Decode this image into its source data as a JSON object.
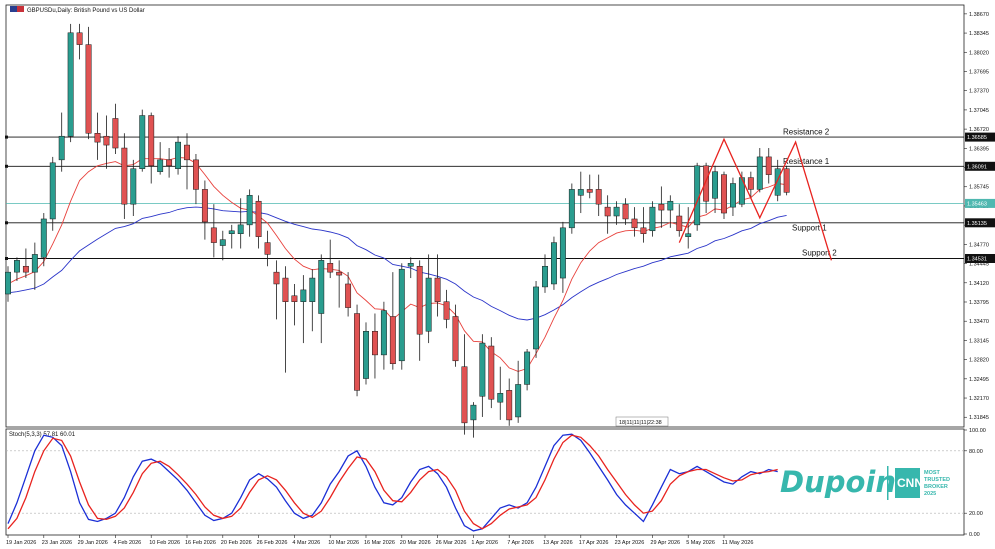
{
  "chart_data": {
    "type": "candlestick",
    "symbol_title": "GBPUSDu,Daily:  British Pound vs US Dollar",
    "colors": {
      "bull": "#2a9d8f",
      "bear": "#e05252",
      "ma_fast": "#e8413c",
      "ma_slow": "#2b35c9",
      "stoch_main": "#1b2fd6",
      "stoch_signal": "#e8231f",
      "level": "#111111",
      "bid": "#4fb8b0",
      "pattern": "#e8231f"
    },
    "candles": [
      {
        "o": 1.3393,
        "h": 1.344,
        "l": 1.338,
        "c": 1.343
      },
      {
        "o": 1.343,
        "h": 1.3455,
        "l": 1.3415,
        "c": 1.345
      },
      {
        "o": 1.344,
        "h": 1.347,
        "l": 1.342,
        "c": 1.343
      },
      {
        "o": 1.343,
        "h": 1.348,
        "l": 1.34,
        "c": 1.346
      },
      {
        "o": 1.3455,
        "h": 1.353,
        "l": 1.344,
        "c": 1.352
      },
      {
        "o": 1.352,
        "h": 1.3625,
        "l": 1.35,
        "c": 1.3615
      },
      {
        "o": 1.362,
        "h": 1.37,
        "l": 1.36,
        "c": 1.366
      },
      {
        "o": 1.366,
        "h": 1.385,
        "l": 1.365,
        "c": 1.3835
      },
      {
        "o": 1.3835,
        "h": 1.385,
        "l": 1.379,
        "c": 1.3815
      },
      {
        "o": 1.3815,
        "h": 1.3845,
        "l": 1.3655,
        "c": 1.3665
      },
      {
        "o": 1.3665,
        "h": 1.37,
        "l": 1.362,
        "c": 1.365
      },
      {
        "o": 1.366,
        "h": 1.3695,
        "l": 1.3605,
        "c": 1.3645
      },
      {
        "o": 1.369,
        "h": 1.3715,
        "l": 1.363,
        "c": 1.364
      },
      {
        "o": 1.364,
        "h": 1.3665,
        "l": 1.352,
        "c": 1.3545
      },
      {
        "o": 1.3545,
        "h": 1.362,
        "l": 1.3525,
        "c": 1.3605
      },
      {
        "o": 1.3605,
        "h": 1.3705,
        "l": 1.36,
        "c": 1.3695
      },
      {
        "o": 1.3695,
        "h": 1.37,
        "l": 1.358,
        "c": 1.361
      },
      {
        "o": 1.36,
        "h": 1.365,
        "l": 1.3595,
        "c": 1.362
      },
      {
        "o": 1.362,
        "h": 1.364,
        "l": 1.359,
        "c": 1.361
      },
      {
        "o": 1.3605,
        "h": 1.366,
        "l": 1.3595,
        "c": 1.365
      },
      {
        "o": 1.3645,
        "h": 1.3665,
        "l": 1.357,
        "c": 1.362
      },
      {
        "o": 1.362,
        "h": 1.363,
        "l": 1.3545,
        "c": 1.357
      },
      {
        "o": 1.357,
        "h": 1.3585,
        "l": 1.3485,
        "c": 1.3515
      },
      {
        "o": 1.3505,
        "h": 1.3545,
        "l": 1.3455,
        "c": 1.348
      },
      {
        "o": 1.3475,
        "h": 1.35,
        "l": 1.345,
        "c": 1.3485
      },
      {
        "o": 1.3495,
        "h": 1.351,
        "l": 1.347,
        "c": 1.35
      },
      {
        "o": 1.3495,
        "h": 1.3555,
        "l": 1.347,
        "c": 1.351
      },
      {
        "o": 1.351,
        "h": 1.357,
        "l": 1.349,
        "c": 1.356
      },
      {
        "o": 1.355,
        "h": 1.356,
        "l": 1.347,
        "c": 1.349
      },
      {
        "o": 1.348,
        "h": 1.35,
        "l": 1.344,
        "c": 1.346
      },
      {
        "o": 1.343,
        "h": 1.345,
        "l": 1.335,
        "c": 1.341
      },
      {
        "o": 1.342,
        "h": 1.344,
        "l": 1.326,
        "c": 1.338
      },
      {
        "o": 1.339,
        "h": 1.341,
        "l": 1.334,
        "c": 1.338
      },
      {
        "o": 1.338,
        "h": 1.3425,
        "l": 1.331,
        "c": 1.34
      },
      {
        "o": 1.338,
        "h": 1.3435,
        "l": 1.333,
        "c": 1.342
      },
      {
        "o": 1.336,
        "h": 1.346,
        "l": 1.331,
        "c": 1.345
      },
      {
        "o": 1.3445,
        "h": 1.3485,
        "l": 1.342,
        "c": 1.343
      },
      {
        "o": 1.343,
        "h": 1.345,
        "l": 1.337,
        "c": 1.3425
      },
      {
        "o": 1.341,
        "h": 1.343,
        "l": 1.3355,
        "c": 1.337
      },
      {
        "o": 1.336,
        "h": 1.3375,
        "l": 1.322,
        "c": 1.323
      },
      {
        "o": 1.325,
        "h": 1.3345,
        "l": 1.324,
        "c": 1.333
      },
      {
        "o": 1.333,
        "h": 1.336,
        "l": 1.325,
        "c": 1.329
      },
      {
        "o": 1.329,
        "h": 1.338,
        "l": 1.3265,
        "c": 1.3365
      },
      {
        "o": 1.3355,
        "h": 1.343,
        "l": 1.3265,
        "c": 1.3275
      },
      {
        "o": 1.328,
        "h": 1.3445,
        "l": 1.3265,
        "c": 1.3435
      },
      {
        "o": 1.344,
        "h": 1.3455,
        "l": 1.342,
        "c": 1.3445
      },
      {
        "o": 1.344,
        "h": 1.345,
        "l": 1.328,
        "c": 1.3325
      },
      {
        "o": 1.333,
        "h": 1.346,
        "l": 1.331,
        "c": 1.342
      },
      {
        "o": 1.342,
        "h": 1.346,
        "l": 1.3355,
        "c": 1.338
      },
      {
        "o": 1.338,
        "h": 1.34,
        "l": 1.3335,
        "c": 1.335
      },
      {
        "o": 1.3355,
        "h": 1.3375,
        "l": 1.327,
        "c": 1.328
      },
      {
        "o": 1.327,
        "h": 1.3325,
        "l": 1.3155,
        "c": 1.3175
      },
      {
        "o": 1.318,
        "h": 1.321,
        "l": 1.315,
        "c": 1.3205
      },
      {
        "o": 1.322,
        "h": 1.3325,
        "l": 1.3185,
        "c": 1.331
      },
      {
        "o": 1.3305,
        "h": 1.332,
        "l": 1.32,
        "c": 1.3215
      },
      {
        "o": 1.321,
        "h": 1.327,
        "l": 1.318,
        "c": 1.3225
      },
      {
        "o": 1.323,
        "h": 1.325,
        "l": 1.317,
        "c": 1.318
      },
      {
        "o": 1.3185,
        "h": 1.328,
        "l": 1.3175,
        "c": 1.324
      },
      {
        "o": 1.324,
        "h": 1.33,
        "l": 1.323,
        "c": 1.3295
      },
      {
        "o": 1.33,
        "h": 1.3415,
        "l": 1.3285,
        "c": 1.3405
      },
      {
        "o": 1.3405,
        "h": 1.346,
        "l": 1.3395,
        "c": 1.344
      },
      {
        "o": 1.341,
        "h": 1.349,
        "l": 1.34,
        "c": 1.348
      },
      {
        "o": 1.342,
        "h": 1.3515,
        "l": 1.3395,
        "c": 1.3505
      },
      {
        "o": 1.3505,
        "h": 1.358,
        "l": 1.3495,
        "c": 1.357
      },
      {
        "o": 1.356,
        "h": 1.36,
        "l": 1.353,
        "c": 1.357
      },
      {
        "o": 1.357,
        "h": 1.3595,
        "l": 1.3555,
        "c": 1.3565
      },
      {
        "o": 1.357,
        "h": 1.3595,
        "l": 1.3525,
        "c": 1.3545
      },
      {
        "o": 1.354,
        "h": 1.356,
        "l": 1.3495,
        "c": 1.3525
      },
      {
        "o": 1.3525,
        "h": 1.355,
        "l": 1.351,
        "c": 1.354
      },
      {
        "o": 1.3545,
        "h": 1.3555,
        "l": 1.351,
        "c": 1.352
      },
      {
        "o": 1.352,
        "h": 1.354,
        "l": 1.349,
        "c": 1.3505
      },
      {
        "o": 1.3505,
        "h": 1.354,
        "l": 1.348,
        "c": 1.3495
      },
      {
        "o": 1.35,
        "h": 1.355,
        "l": 1.349,
        "c": 1.354
      },
      {
        "o": 1.3545,
        "h": 1.3575,
        "l": 1.3505,
        "c": 1.3535
      },
      {
        "o": 1.3535,
        "h": 1.356,
        "l": 1.3505,
        "c": 1.355
      },
      {
        "o": 1.3525,
        "h": 1.3545,
        "l": 1.349,
        "c": 1.35
      },
      {
        "o": 1.349,
        "h": 1.354,
        "l": 1.347,
        "c": 1.3495
      },
      {
        "o": 1.351,
        "h": 1.3615,
        "l": 1.35,
        "c": 1.361
      },
      {
        "o": 1.361,
        "h": 1.3615,
        "l": 1.353,
        "c": 1.355
      },
      {
        "o": 1.3555,
        "h": 1.361,
        "l": 1.353,
        "c": 1.36
      },
      {
        "o": 1.3595,
        "h": 1.36,
        "l": 1.352,
        "c": 1.353
      },
      {
        "o": 1.354,
        "h": 1.359,
        "l": 1.3525,
        "c": 1.358
      },
      {
        "o": 1.3545,
        "h": 1.36,
        "l": 1.354,
        "c": 1.359
      },
      {
        "o": 1.359,
        "h": 1.36,
        "l": 1.3555,
        "c": 1.357
      },
      {
        "o": 1.357,
        "h": 1.364,
        "l": 1.3565,
        "c": 1.3625
      },
      {
        "o": 1.3625,
        "h": 1.364,
        "l": 1.358,
        "c": 1.3595
      },
      {
        "o": 1.356,
        "h": 1.362,
        "l": 1.355,
        "c": 1.3605
      },
      {
        "o": 1.3605,
        "h": 1.361,
        "l": 1.356,
        "c": 1.3565
      }
    ],
    "ma_fast": [
      1.341,
      1.3418,
      1.3424,
      1.3431,
      1.3448,
      1.3478,
      1.351,
      1.355,
      1.3585,
      1.36,
      1.361,
      1.3614,
      1.3617,
      1.361,
      1.3612,
      1.3622,
      1.3622,
      1.3622,
      1.362,
      1.3624,
      1.3623,
      1.3614,
      1.3595,
      1.3575,
      1.356,
      1.3548,
      1.3538,
      1.3535,
      1.3525,
      1.3513,
      1.3492,
      1.347,
      1.3452,
      1.344,
      1.3434,
      1.3436,
      1.3435,
      1.3433,
      1.3423,
      1.3395,
      1.3382,
      1.3368,
      1.3367,
      1.335,
      1.3363,
      1.3376,
      1.337,
      1.3377,
      1.3378,
      1.3373,
      1.3358,
      1.3331,
      1.3313,
      1.3312,
      1.3295,
      1.3285,
      1.3268,
      1.3262,
      1.3267,
      1.3292,
      1.332,
      1.3352,
      1.3382,
      1.3418,
      1.3446,
      1.3466,
      1.348,
      1.3488,
      1.3496,
      1.35,
      1.3501,
      1.3499,
      1.3504,
      1.3507,
      1.3514,
      1.351,
      1.3506,
      1.3523,
      1.3527,
      1.3537,
      1.3535,
      1.3543,
      1.3552,
      1.3556,
      1.357,
      1.3574,
      1.358,
      1.3578
    ],
    "ma_slow": [
      1.3395,
      1.3397,
      1.34,
      1.3403,
      1.341,
      1.3422,
      1.3433,
      1.345,
      1.3466,
      1.3476,
      1.3486,
      1.3495,
      1.3504,
      1.3507,
      1.3512,
      1.3521,
      1.3524,
      1.3528,
      1.3531,
      1.3536,
      1.3539,
      1.354,
      1.3539,
      1.3537,
      1.3534,
      1.3533,
      1.3532,
      1.3533,
      1.3531,
      1.3528,
      1.3522,
      1.3516,
      1.3511,
      1.3507,
      1.3503,
      1.3501,
      1.3498,
      1.3494,
      1.3488,
      1.3475,
      1.3468,
      1.3459,
      1.3454,
      1.3443,
      1.344,
      1.3437,
      1.343,
      1.3427,
      1.3423,
      1.3418,
      1.341,
      1.3398,
      1.3388,
      1.3382,
      1.3372,
      1.3365,
      1.3357,
      1.3351,
      1.3349,
      1.3352,
      1.3358,
      1.3366,
      1.3375,
      1.3387,
      1.3397,
      1.3406,
      1.3413,
      1.3419,
      1.3426,
      1.3431,
      1.3436,
      1.344,
      1.3446,
      1.345,
      1.3456,
      1.3459,
      1.3462,
      1.347,
      1.3475,
      1.3483,
      1.3487,
      1.3493,
      1.35,
      1.3504,
      1.3512,
      1.3517,
      1.3523,
      1.3526
    ],
    "stoch_main": [
      10,
      30,
      55,
      80,
      95,
      93,
      85,
      60,
      30,
      14,
      12,
      15,
      20,
      35,
      55,
      70,
      72,
      68,
      60,
      52,
      42,
      30,
      18,
      13,
      15,
      20,
      35,
      52,
      58,
      53,
      45,
      32,
      20,
      15,
      18,
      30,
      48,
      60,
      75,
      80,
      65,
      45,
      30,
      28,
      35,
      50,
      62,
      65,
      58,
      45,
      25,
      8,
      3,
      5,
      15,
      25,
      28,
      25,
      30,
      45,
      65,
      85,
      95,
      96,
      90,
      78,
      65,
      52,
      38,
      28,
      20,
      12,
      28,
      45,
      62,
      58,
      60,
      65,
      60,
      55,
      50,
      48,
      55,
      60,
      58,
      62,
      60
    ],
    "stoch_signal": [
      5,
      15,
      35,
      60,
      80,
      92,
      90,
      75,
      50,
      28,
      15,
      14,
      17,
      25,
      40,
      58,
      68,
      70,
      65,
      57,
      48,
      38,
      26,
      18,
      15,
      17,
      25,
      40,
      52,
      56,
      52,
      42,
      30,
      20,
      16,
      22,
      35,
      50,
      63,
      74,
      72,
      60,
      42,
      32,
      31,
      40,
      52,
      60,
      62,
      55,
      42,
      22,
      10,
      5,
      10,
      18,
      24,
      26,
      28,
      35,
      52,
      72,
      88,
      95,
      93,
      85,
      75,
      62,
      50,
      38,
      28,
      20,
      22,
      32,
      48,
      56,
      60,
      62,
      62,
      58,
      54,
      51,
      52,
      57,
      59,
      60,
      62
    ],
    "y_axis_ticks": [
      "1.38670",
      "1.38345",
      "1.38020",
      "1.37695",
      "1.37370",
      "1.37045",
      "1.36720",
      "1.36395",
      "1.36070",
      "1.35745",
      "1.35420",
      "1.35095",
      "1.34770",
      "1.34445",
      "1.34120",
      "1.33795",
      "1.33470",
      "1.33145",
      "1.32820",
      "1.32495",
      "1.32170",
      "1.31845"
    ],
    "y_axis_values": [
      1.3867,
      1.38345,
      1.3802,
      1.37695,
      1.3737,
      1.37045,
      1.3672,
      1.36395,
      1.3607,
      1.35745,
      1.3542,
      1.35095,
      1.3477,
      1.34445,
      1.3412,
      1.33795,
      1.3347,
      1.33145,
      1.3282,
      1.32495,
      1.3217,
      1.31845
    ],
    "price_ylim": [
      1.3168,
      1.3882
    ],
    "x_axis_labels": [
      "19 Jan 2026",
      "23 Jan 2026",
      "29 Jan 2026",
      "4 Feb 2026",
      "10 Feb 2026",
      "16 Feb 2026",
      "20 Feb 2026",
      "26 Feb 2026",
      "4 Mar 2026",
      "10 Mar 2026",
      "16 Mar 2026",
      "20 Mar 2026",
      "26 Mar 2026",
      "1 Apr 2026",
      "7 Apr 2026",
      "13 Apr 2026",
      "17 Apr 2026",
      "23 Apr 2026",
      "29 Apr 2026",
      "5 May 2026",
      "11 May 2026"
    ],
    "x_axis_label_index": [
      0,
      4,
      8,
      12,
      16,
      20,
      24,
      28,
      32,
      36,
      40,
      44,
      48,
      52,
      56,
      60,
      64,
      68,
      72,
      76,
      80
    ],
    "levels": [
      {
        "name": "Resistance 2",
        "value": 1.36585,
        "tag": "1.36585"
      },
      {
        "name": "Resistance 1",
        "value": 1.36091,
        "tag": "1.36091"
      },
      {
        "name": "Support 1",
        "value": 1.35135,
        "tag": "1.35135"
      },
      {
        "name": "Support 2",
        "value": 1.34531,
        "tag": "1.34531"
      }
    ],
    "bid_line": {
      "value": 1.35463,
      "tag": "1.35463"
    },
    "zigzag_points": [
      [
        75,
        1.348
      ],
      [
        80,
        1.3655
      ],
      [
        84,
        1.3522
      ],
      [
        88,
        1.365
      ],
      [
        92,
        1.345
      ]
    ],
    "stoch_title": "Stoch(5,3,3) 57.81 60.01",
    "stoch_ylim": [
      0,
      100
    ],
    "stoch_axis_ticks": [
      "100.00",
      "80.00",
      "20.00",
      "0.00"
    ],
    "stoch_axis_values": [
      100,
      80,
      20,
      0
    ],
    "stoch_levels": [
      80,
      20
    ],
    "candle_timer": "18|11|11|11|22:38"
  },
  "branding": {
    "logo_word": "Dupoin",
    "cnn_mark": "CNN",
    "cnn_tag_lines": [
      "MOST",
      "TRUSTED",
      "BROKER",
      "2025"
    ]
  }
}
